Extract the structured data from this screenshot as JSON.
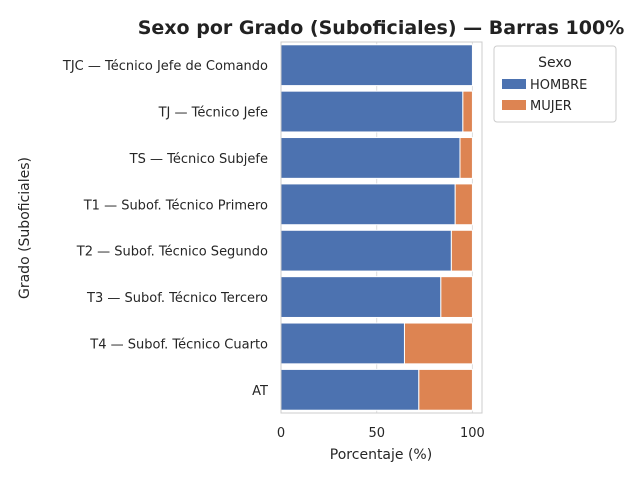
{
  "chart_data": {
    "type": "bar",
    "orientation": "horizontal",
    "stacked": true,
    "normalized_percent": true,
    "title": "Sexo por Grado (Suboficiales) — Barras 100%",
    "xlabel": "Porcentaje (%)",
    "ylabel": "Grado (Suboficiales)",
    "xlim": [
      0,
      105
    ],
    "xticks": [
      "0",
      "50",
      "100"
    ],
    "grid": true,
    "legend": {
      "title": "Sexo",
      "placement": "outside-top-right"
    },
    "categories": [
      "TJC — Técnico Jefe de Comando",
      "TJ — Técnico Jefe",
      "TS — Técnico Subjefe",
      "T1 — Subof. Técnico Primero",
      "T2 — Subof. Técnico Segundo",
      "T3 — Subof. Técnico Tercero",
      "T4 — Subof. Técnico Cuarto",
      "AT"
    ],
    "series": [
      {
        "name": "HOMBRE",
        "color": "#4c72b0",
        "values": [
          100,
          95,
          93.5,
          91,
          89,
          83.5,
          64.5,
          72
        ]
      },
      {
        "name": "MUJER",
        "color": "#dd8452",
        "values": [
          0,
          5,
          6.5,
          9,
          11,
          16.5,
          35.5,
          28
        ]
      }
    ]
  }
}
